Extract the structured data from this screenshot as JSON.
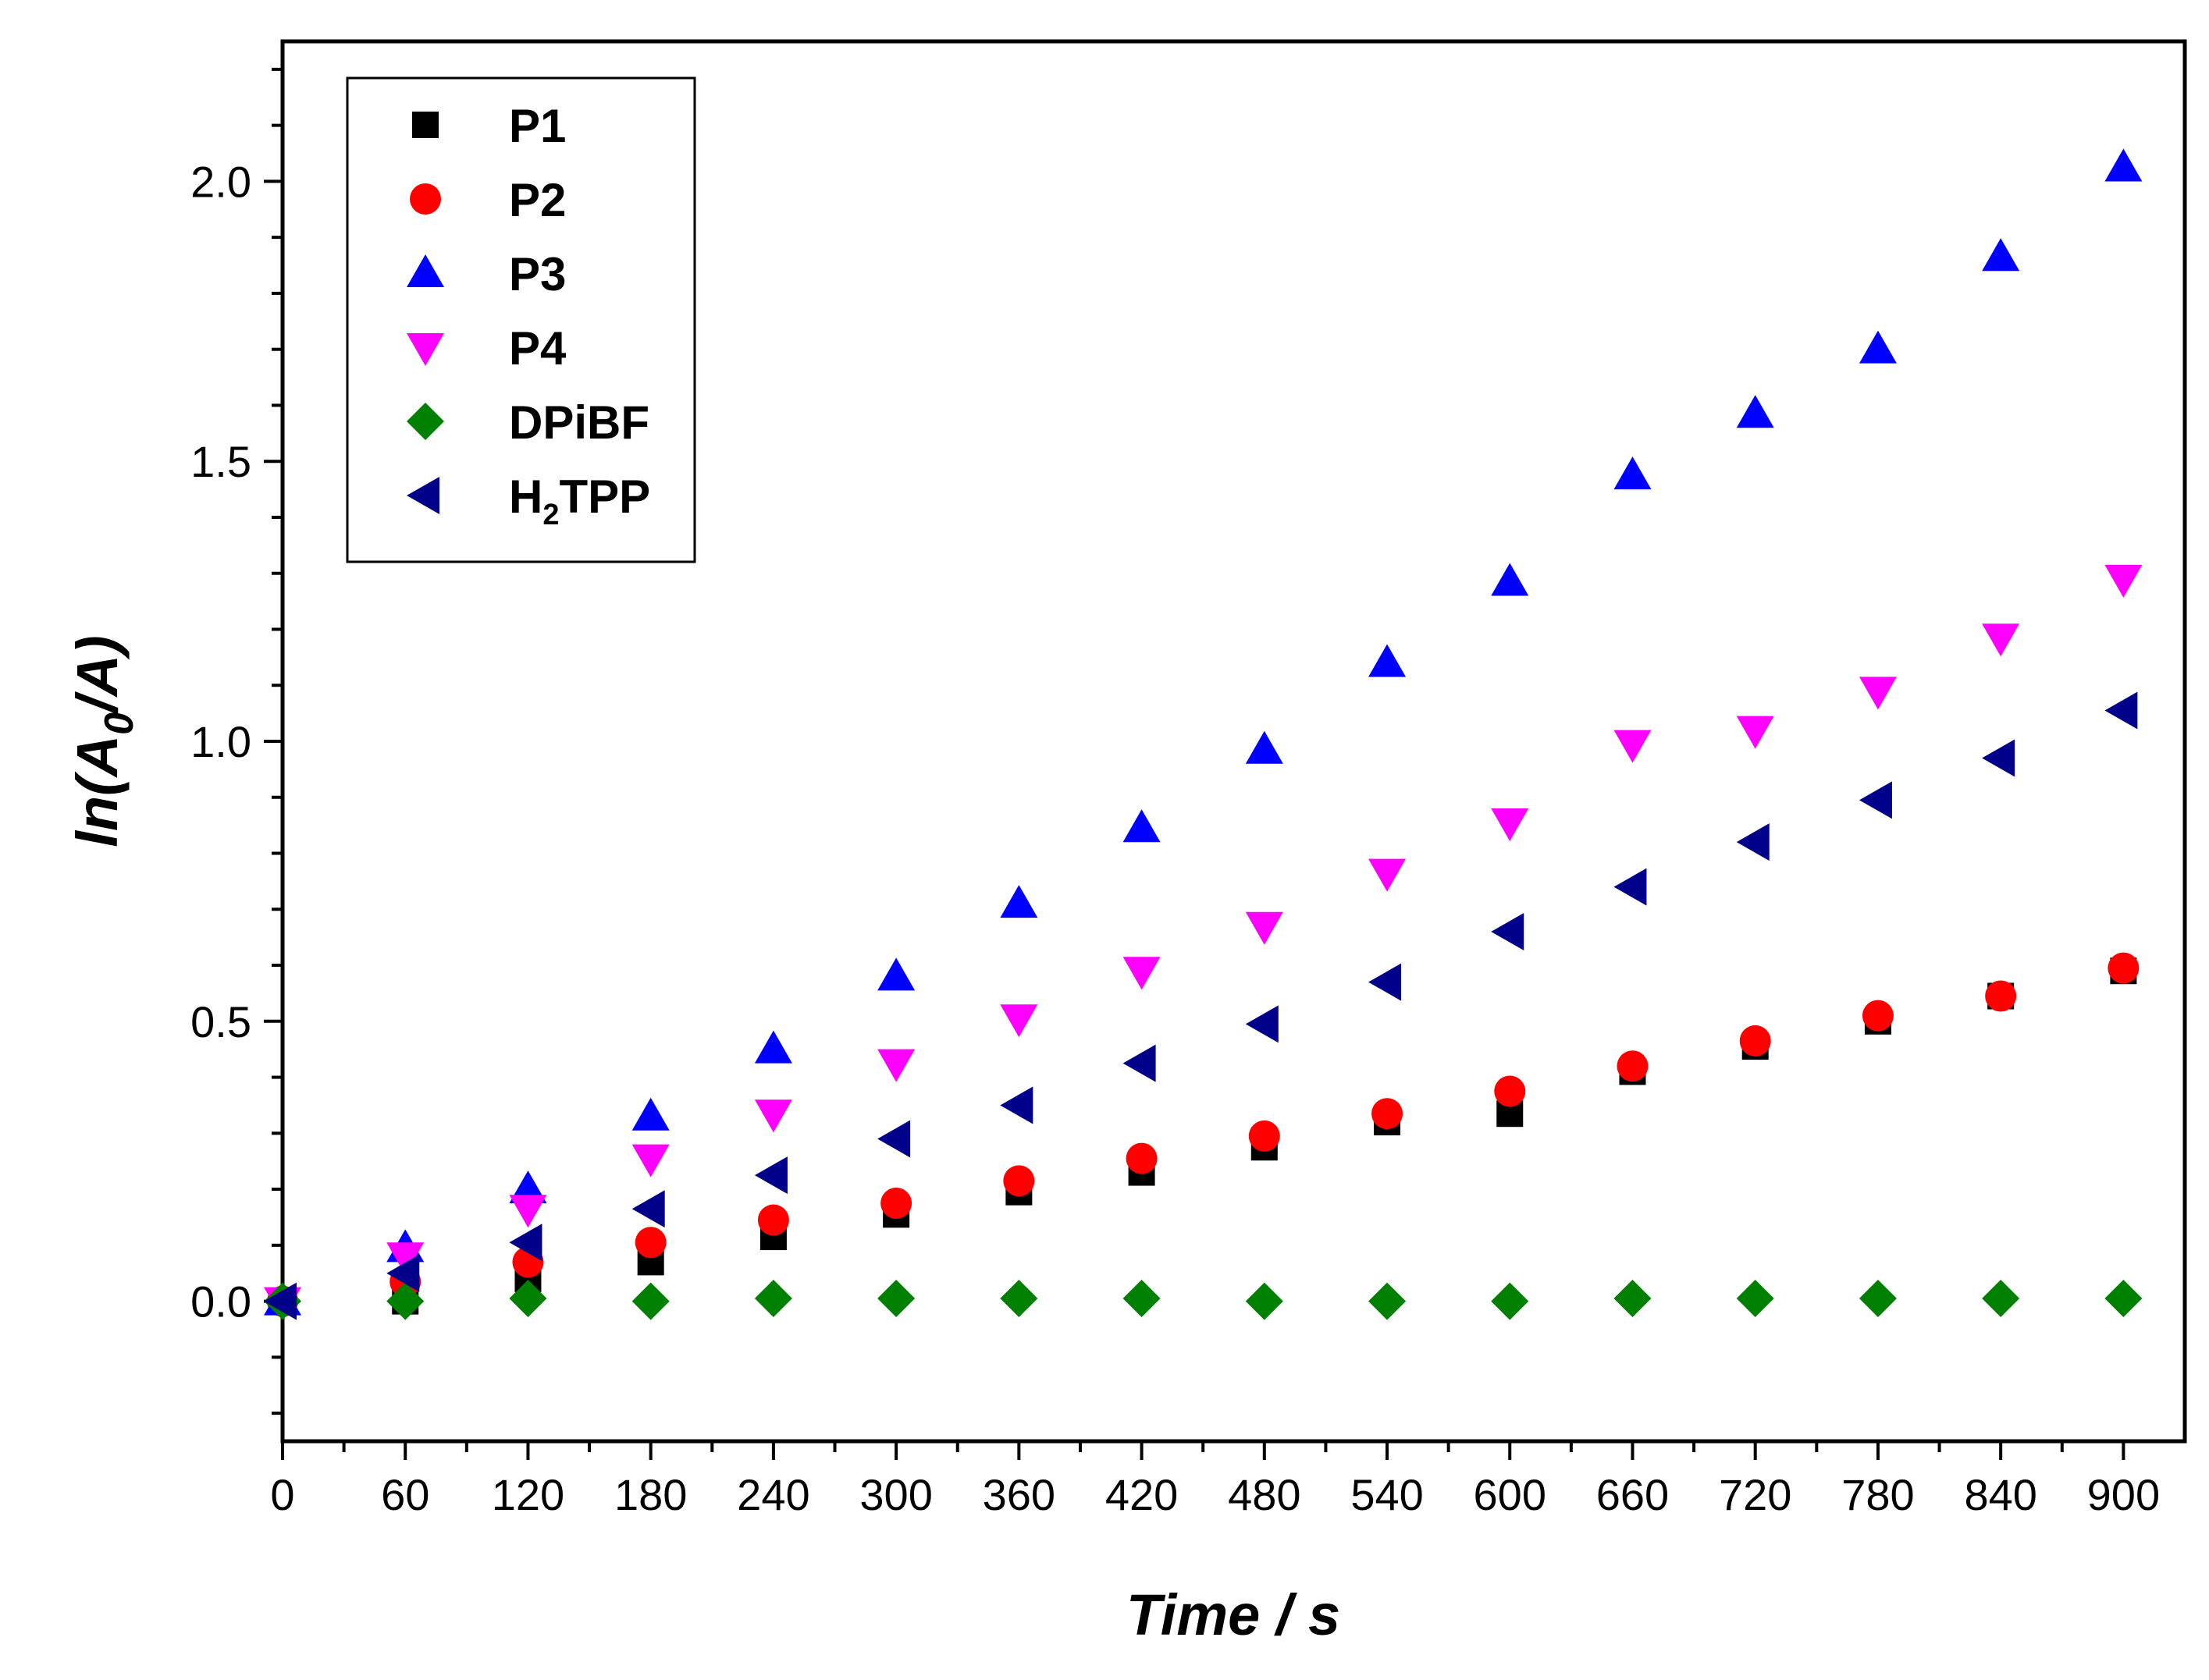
{
  "chart_data": {
    "type": "scatter",
    "title": "",
    "xlabel": "Time / s",
    "ylabel_parts": {
      "pre": "ln(A",
      "sub": "0",
      "post": "/A)"
    },
    "xlim": [
      0,
      930
    ],
    "ylim": [
      -0.25,
      2.25
    ],
    "xticks": [
      0,
      60,
      120,
      180,
      240,
      300,
      360,
      420,
      480,
      540,
      600,
      660,
      720,
      780,
      840,
      900
    ],
    "xtick_labels": [
      "0",
      "60",
      "120",
      "180",
      "240",
      "300",
      "360",
      "420",
      "480",
      "540",
      "600",
      "660",
      "720",
      "780",
      "840",
      "900"
    ],
    "yticks": [
      0.0,
      0.5,
      1.0,
      1.5,
      2.0
    ],
    "ytick_labels": [
      "0.0",
      "0.5",
      "1.0",
      "1.5",
      "2.0"
    ],
    "grid": false,
    "legend_position": "top-left",
    "x": [
      0,
      60,
      120,
      180,
      240,
      300,
      360,
      420,
      480,
      540,
      600,
      660,
      720,
      780,
      840,
      900
    ],
    "series": [
      {
        "name": "P1",
        "label": {
          "pre": "P1",
          "sub": "",
          "post": ""
        },
        "marker": "square",
        "color": "#000000",
        "values": [
          0,
          0.0,
          0.04,
          0.07,
          0.115,
          0.155,
          0.195,
          0.23,
          0.275,
          0.32,
          0.335,
          0.41,
          0.455,
          0.5,
          0.545,
          0.59
        ]
      },
      {
        "name": "P2",
        "label": {
          "pre": "P2",
          "sub": "",
          "post": ""
        },
        "marker": "circle",
        "color": "#ff0000",
        "values": [
          0,
          0.035,
          0.07,
          0.105,
          0.145,
          0.175,
          0.215,
          0.255,
          0.295,
          0.335,
          0.375,
          0.42,
          0.465,
          0.51,
          0.545,
          0.595
        ]
      },
      {
        "name": "P3",
        "label": {
          "pre": "P3",
          "sub": "",
          "post": ""
        },
        "marker": "triangle-up",
        "color": "#0000ff",
        "values": [
          0,
          0.095,
          0.2,
          0.33,
          0.45,
          0.58,
          0.71,
          0.845,
          0.985,
          1.14,
          1.285,
          1.475,
          1.585,
          1.7,
          1.865,
          2.025
        ]
      },
      {
        "name": "P4",
        "label": {
          "pre": "P4",
          "sub": "",
          "post": ""
        },
        "marker": "triangle-down",
        "color": "#ff00ff",
        "values": [
          0,
          0.08,
          0.165,
          0.255,
          0.335,
          0.425,
          0.505,
          0.59,
          0.67,
          0.765,
          0.855,
          0.995,
          1.02,
          1.09,
          1.185,
          1.29
        ]
      },
      {
        "name": "DPiBF",
        "label": {
          "pre": "DPiBF",
          "sub": "",
          "post": ""
        },
        "marker": "diamond",
        "color": "#008000",
        "values": [
          0,
          0.0,
          0.005,
          0.0,
          0.005,
          0.005,
          0.005,
          0.005,
          0.0,
          0.0,
          0.0,
          0.005,
          0.005,
          0.005,
          0.005,
          0.005
        ]
      },
      {
        "name": "H2TPP",
        "label": {
          "pre": "H",
          "sub": "2",
          "post": "TPP"
        },
        "marker": "triangle-left",
        "color": "#00008b",
        "values": [
          0,
          0.05,
          0.105,
          0.165,
          0.225,
          0.29,
          0.35,
          0.425,
          0.495,
          0.57,
          0.66,
          0.74,
          0.82,
          0.895,
          0.97,
          1.055
        ]
      }
    ]
  }
}
